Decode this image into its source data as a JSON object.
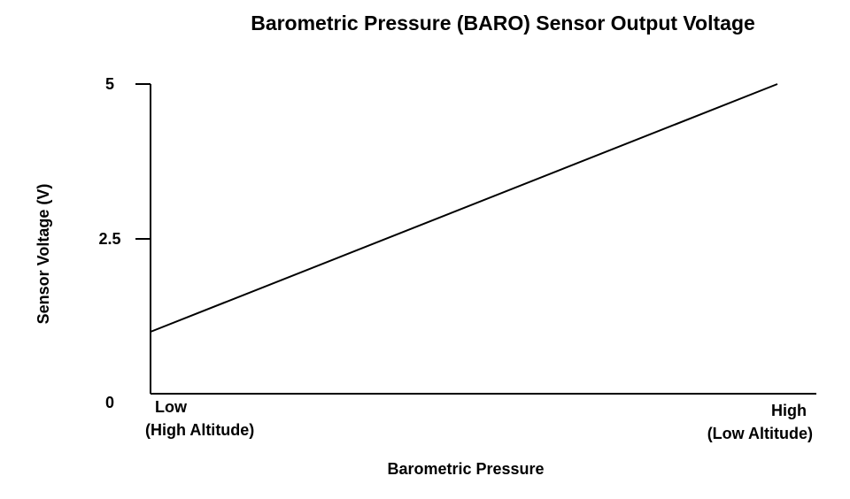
{
  "chart_data": {
    "type": "line",
    "title": "Barometric Pressure (BARO) Sensor Output Voltage",
    "x_label": "Barometric Pressure",
    "y_label": "Sensor Voltage (V)",
    "categories": [
      [
        "Low",
        "(High Altitude)"
      ],
      [
        "High",
        "(Low Altitude)"
      ]
    ],
    "values": [
      1,
      5
    ],
    "color": "#000000",
    "ylim": [
      0,
      5
    ],
    "yticks": [
      0,
      2.5,
      5
    ]
  }
}
